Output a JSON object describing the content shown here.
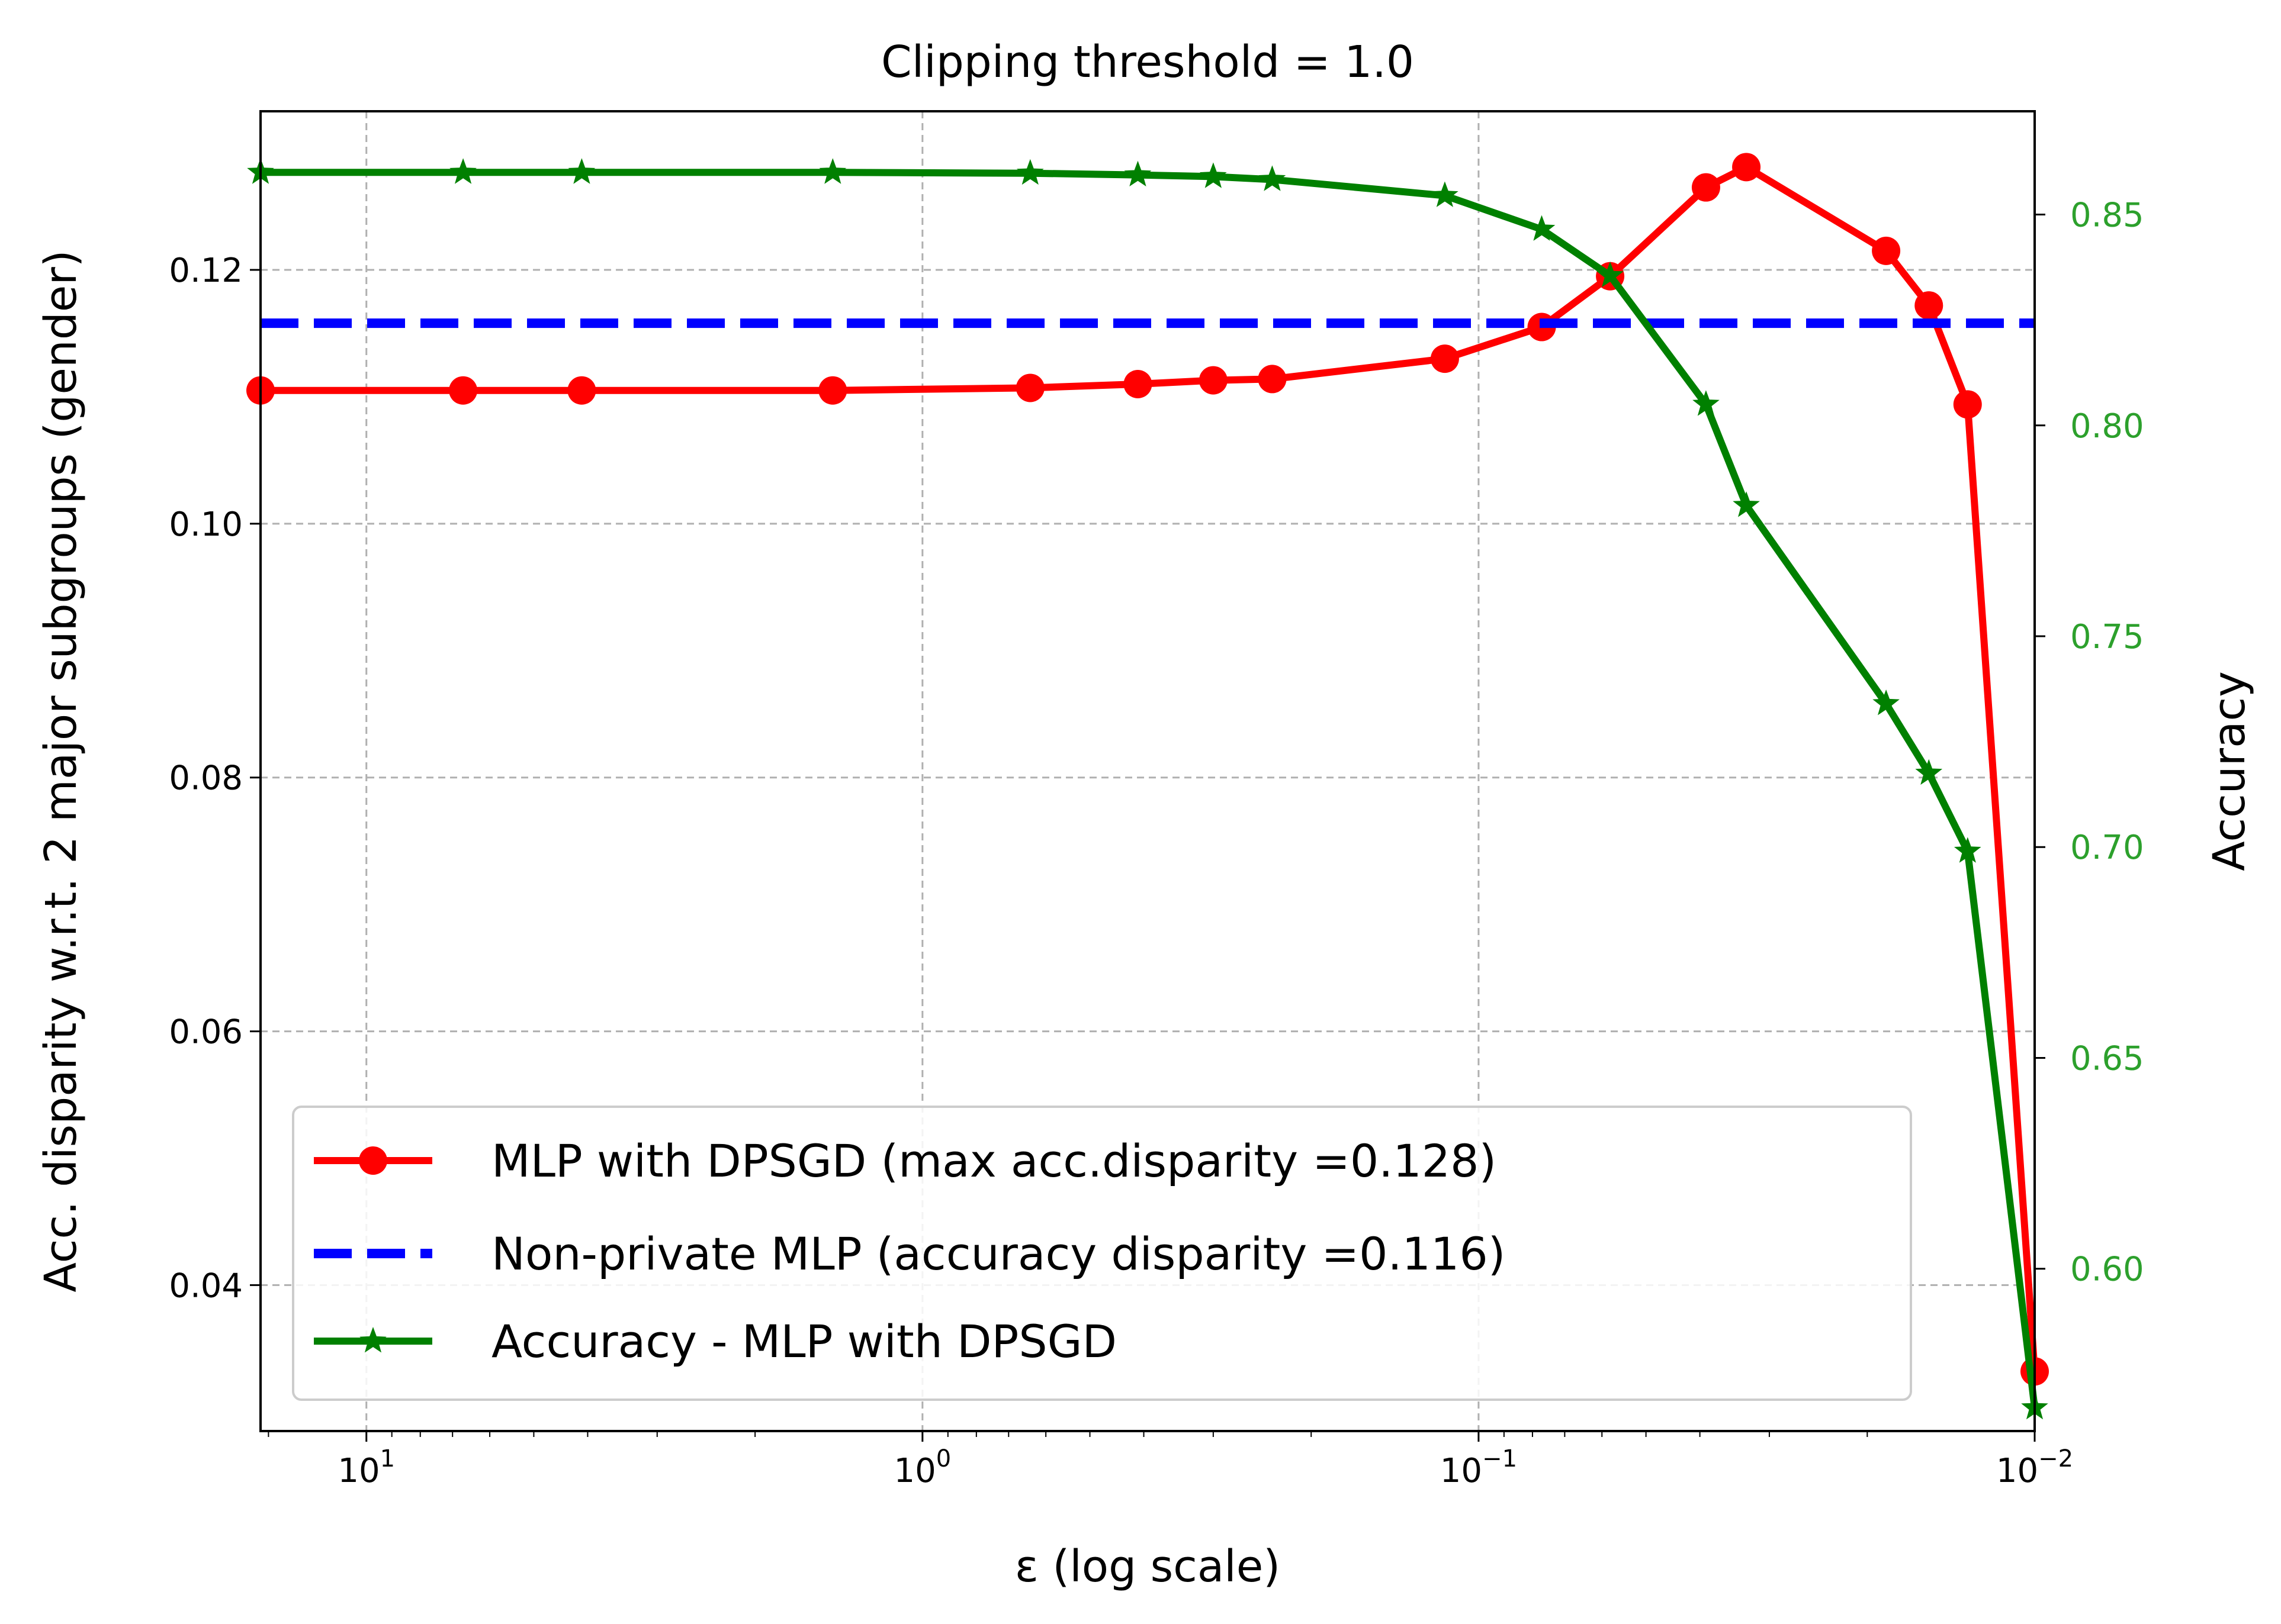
{
  "chart_data": {
    "type": "line",
    "title": "Clipping threshold = 1.0",
    "xlabel": "ε (log scale)",
    "ylabel_left": "Acc. disparity w.r.t. 2 major subgroups (gender)",
    "ylabel_right": "Accuracy",
    "x_scale": "log",
    "x_inverted": true,
    "xlim": [
      15.5,
      0.01
    ],
    "ylim_left": [
      0.0285,
      0.1325
    ],
    "ylim_right": [
      0.5615,
      0.8745
    ],
    "grid": true,
    "legend_position": "lower-left",
    "x_ticks": [
      {
        "value": 10,
        "base": "10",
        "exp": "1"
      },
      {
        "value": 1,
        "base": "10",
        "exp": "0"
      },
      {
        "value": 0.1,
        "base": "10",
        "exp": "−1"
      },
      {
        "value": 0.01,
        "base": "10",
        "exp": "−2"
      }
    ],
    "y_ticks_left": [
      {
        "value": 0.04,
        "label": "0.04"
      },
      {
        "value": 0.06,
        "label": "0.06"
      },
      {
        "value": 0.08,
        "label": "0.08"
      },
      {
        "value": 0.1,
        "label": "0.10"
      },
      {
        "value": 0.12,
        "label": "0.12"
      }
    ],
    "y_ticks_right": [
      {
        "value": 0.6,
        "label": "0.60"
      },
      {
        "value": 0.65,
        "label": "0.65"
      },
      {
        "value": 0.7,
        "label": "0.70"
      },
      {
        "value": 0.75,
        "label": "0.75"
      },
      {
        "value": 0.8,
        "label": "0.80"
      },
      {
        "value": 0.85,
        "label": "0.85"
      }
    ],
    "series": [
      {
        "name": "MLP with DPSGD (max acc.disparity =0.128)",
        "axis": "left",
        "color": "#ff0000",
        "marker": "circle",
        "x": [
          15.5,
          6.7,
          4.1,
          1.45,
          0.64,
          0.41,
          0.3,
          0.235,
          0.115,
          0.077,
          0.058,
          0.039,
          0.033,
          0.0185,
          0.0155,
          0.0132,
          0.01
        ],
        "y": [
          0.1105,
          0.1105,
          0.1105,
          0.1105,
          0.1107,
          0.111,
          0.1113,
          0.1114,
          0.113,
          0.1155,
          0.1195,
          0.1265,
          0.1281,
          0.1215,
          0.1172,
          0.1094,
          0.0332
        ]
      },
      {
        "name": "Non-private MLP (accuracy disparity =0.116)",
        "axis": "left",
        "color": "#0000ff",
        "style": "dashed",
        "x": [
          15.5,
          0.01
        ],
        "y": [
          0.1158,
          0.1158
        ]
      },
      {
        "name": "Accuracy - MLP with DPSGD",
        "axis": "right",
        "color": "#008000",
        "marker": "star",
        "x": [
          15.5,
          6.7,
          4.1,
          1.45,
          0.64,
          0.41,
          0.3,
          0.235,
          0.115,
          0.077,
          0.058,
          0.039,
          0.033,
          0.0185,
          0.0155,
          0.0132,
          0.01
        ],
        "y": [
          0.86,
          0.86,
          0.86,
          0.86,
          0.8598,
          0.8594,
          0.859,
          0.8583,
          0.8545,
          0.8465,
          0.8355,
          0.805,
          0.781,
          0.734,
          0.7175,
          0.699,
          0.567
        ]
      }
    ]
  },
  "colors": {
    "right_axis": "#2ca02c",
    "grid": "#b0b0b0"
  }
}
